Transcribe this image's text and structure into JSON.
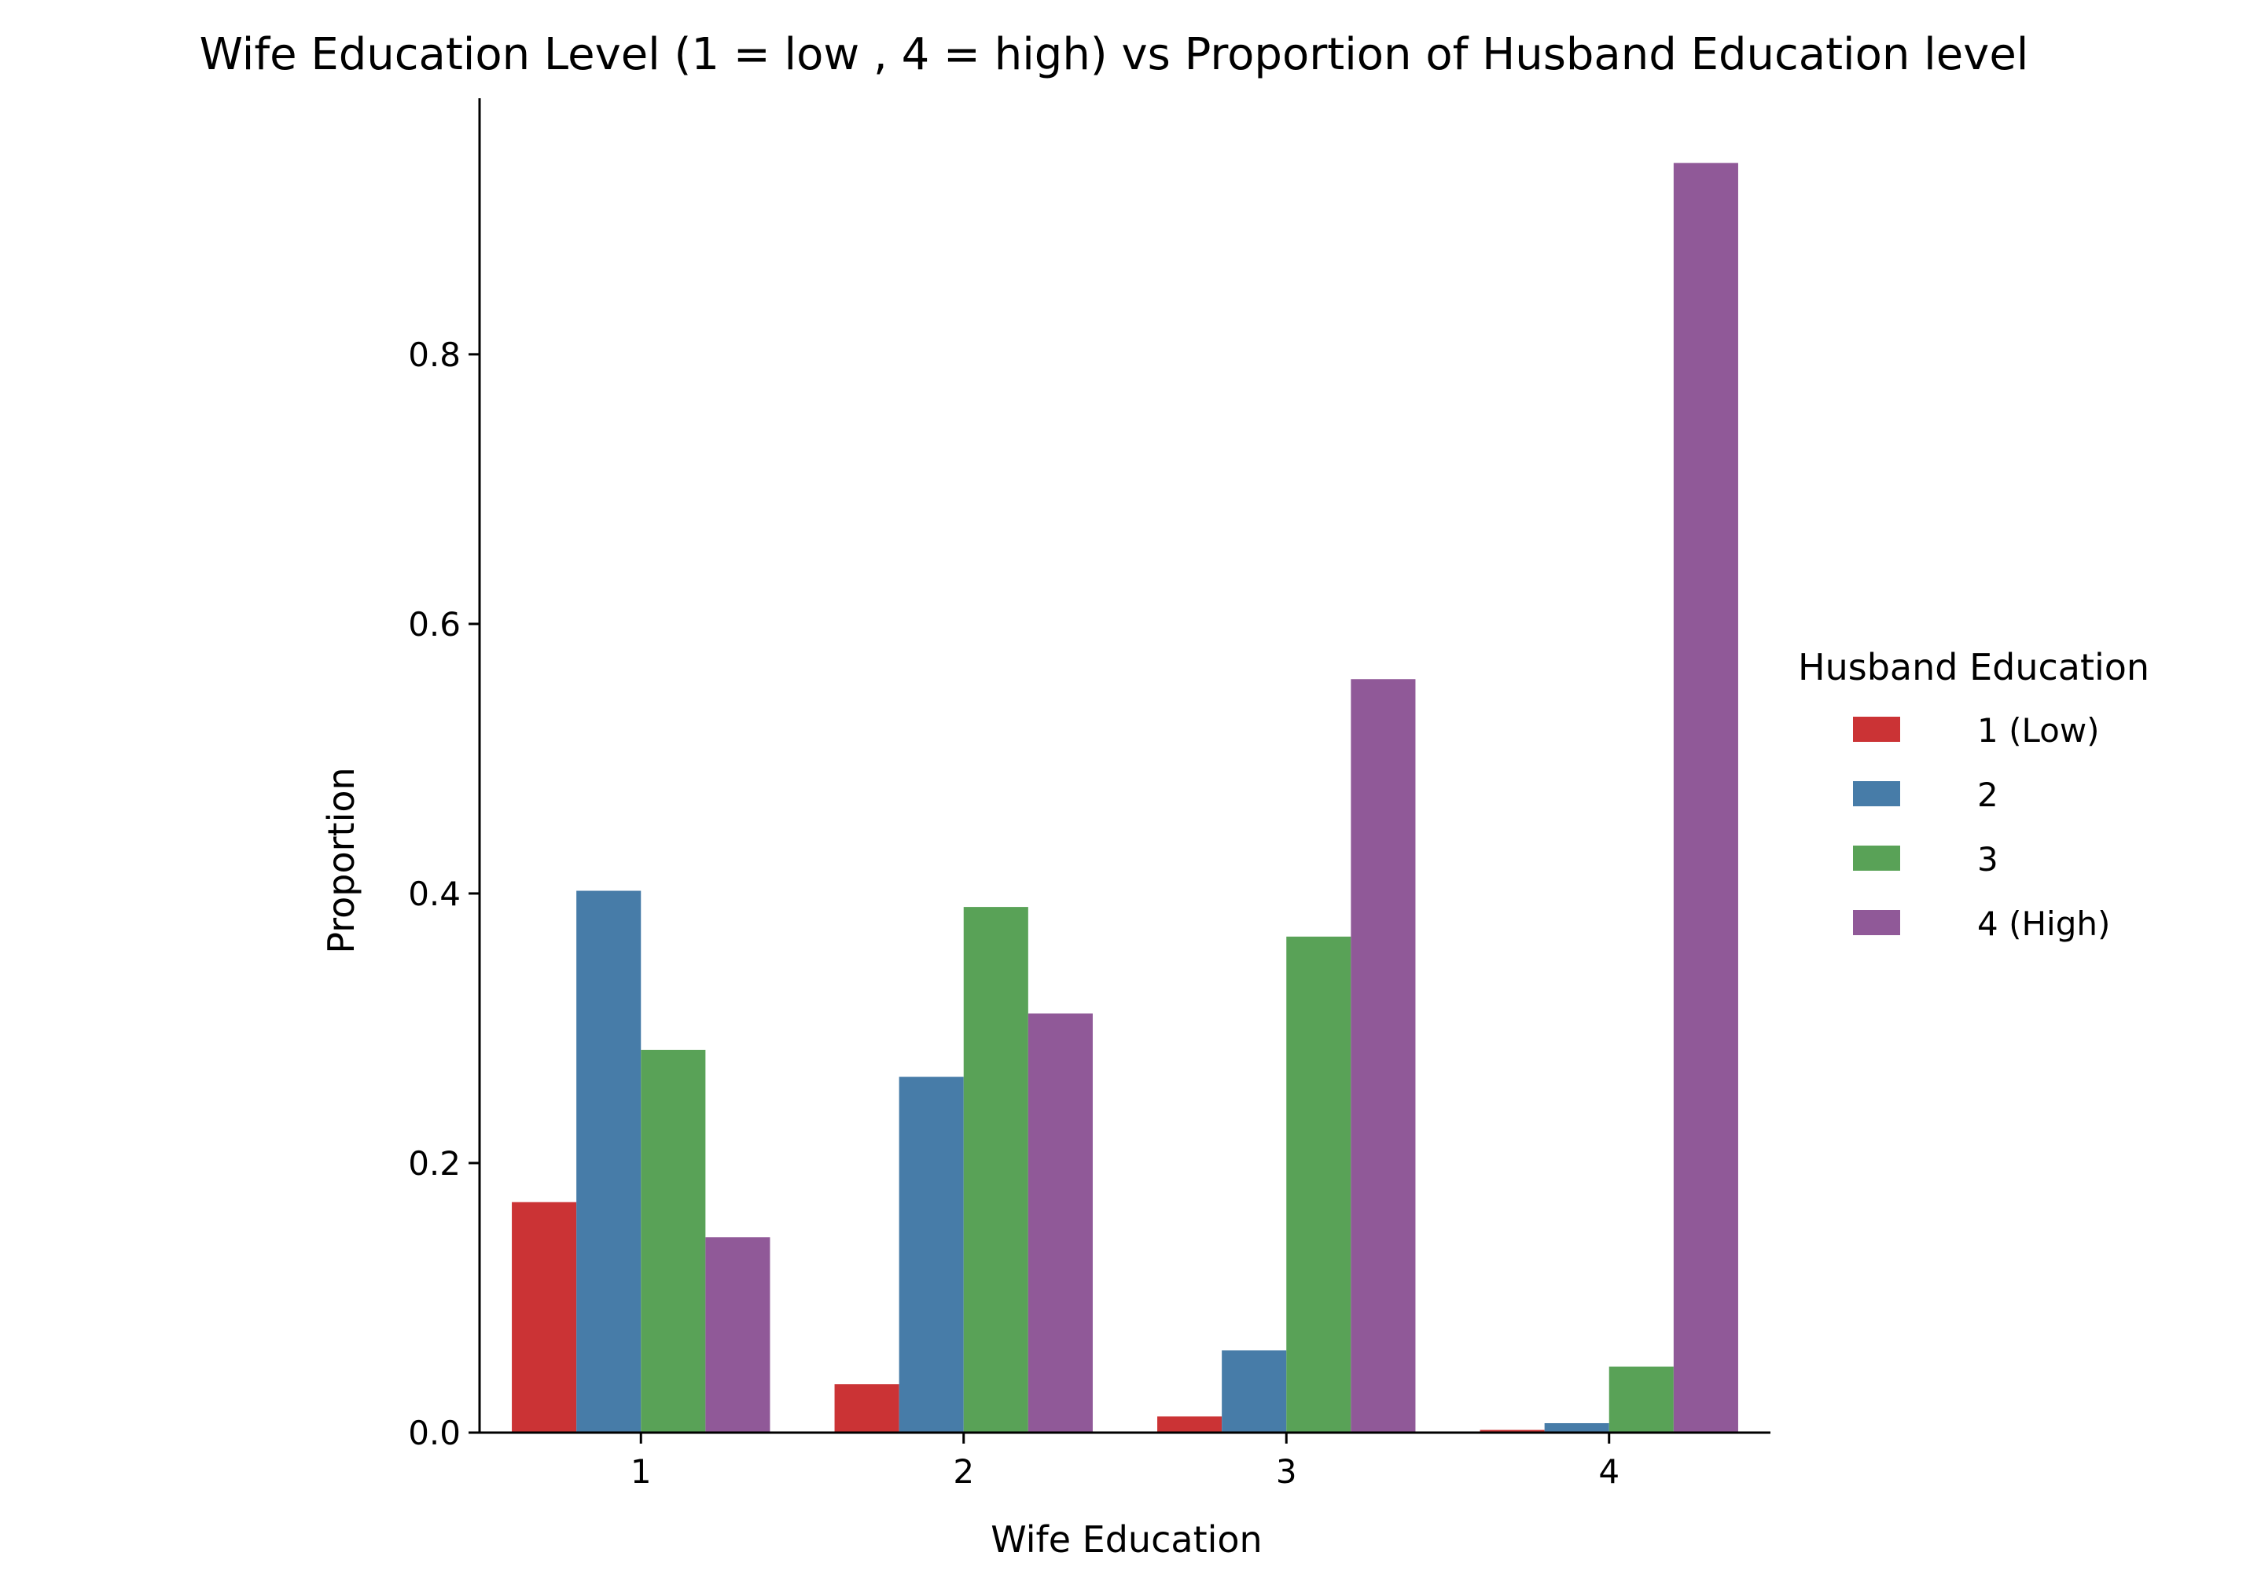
{
  "chart_data": {
    "type": "bar",
    "title": "Wife Education Level (1 = low , 4 = high) vs Proportion of Husband Education level",
    "xlabel": "Wife Education",
    "ylabel": "Proportion",
    "categories": [
      "1",
      "2",
      "3",
      "4"
    ],
    "ylim": [
      0,
      0.99
    ],
    "yticks": [
      0.0,
      0.2,
      0.4,
      0.6,
      0.8
    ],
    "ytick_labels": [
      "0.0",
      "0.2",
      "0.4",
      "0.6",
      "0.8"
    ],
    "grid": false,
    "legend": {
      "title": "Husband Education",
      "placement": "center-right, outside plot"
    },
    "series": [
      {
        "name": "1  (Low)",
        "color": "#cb3335",
        "values": [
          0.171,
          0.036,
          0.012,
          0.002
        ]
      },
      {
        "name": "2",
        "color": "#477ca8",
        "values": [
          0.402,
          0.264,
          0.061,
          0.007
        ]
      },
      {
        "name": "3",
        "color": "#59a257",
        "values": [
          0.284,
          0.39,
          0.368,
          0.049
        ]
      },
      {
        "name": "4  (High)",
        "color": "#905998",
        "values": [
          0.145,
          0.311,
          0.559,
          0.942
        ]
      }
    ]
  }
}
